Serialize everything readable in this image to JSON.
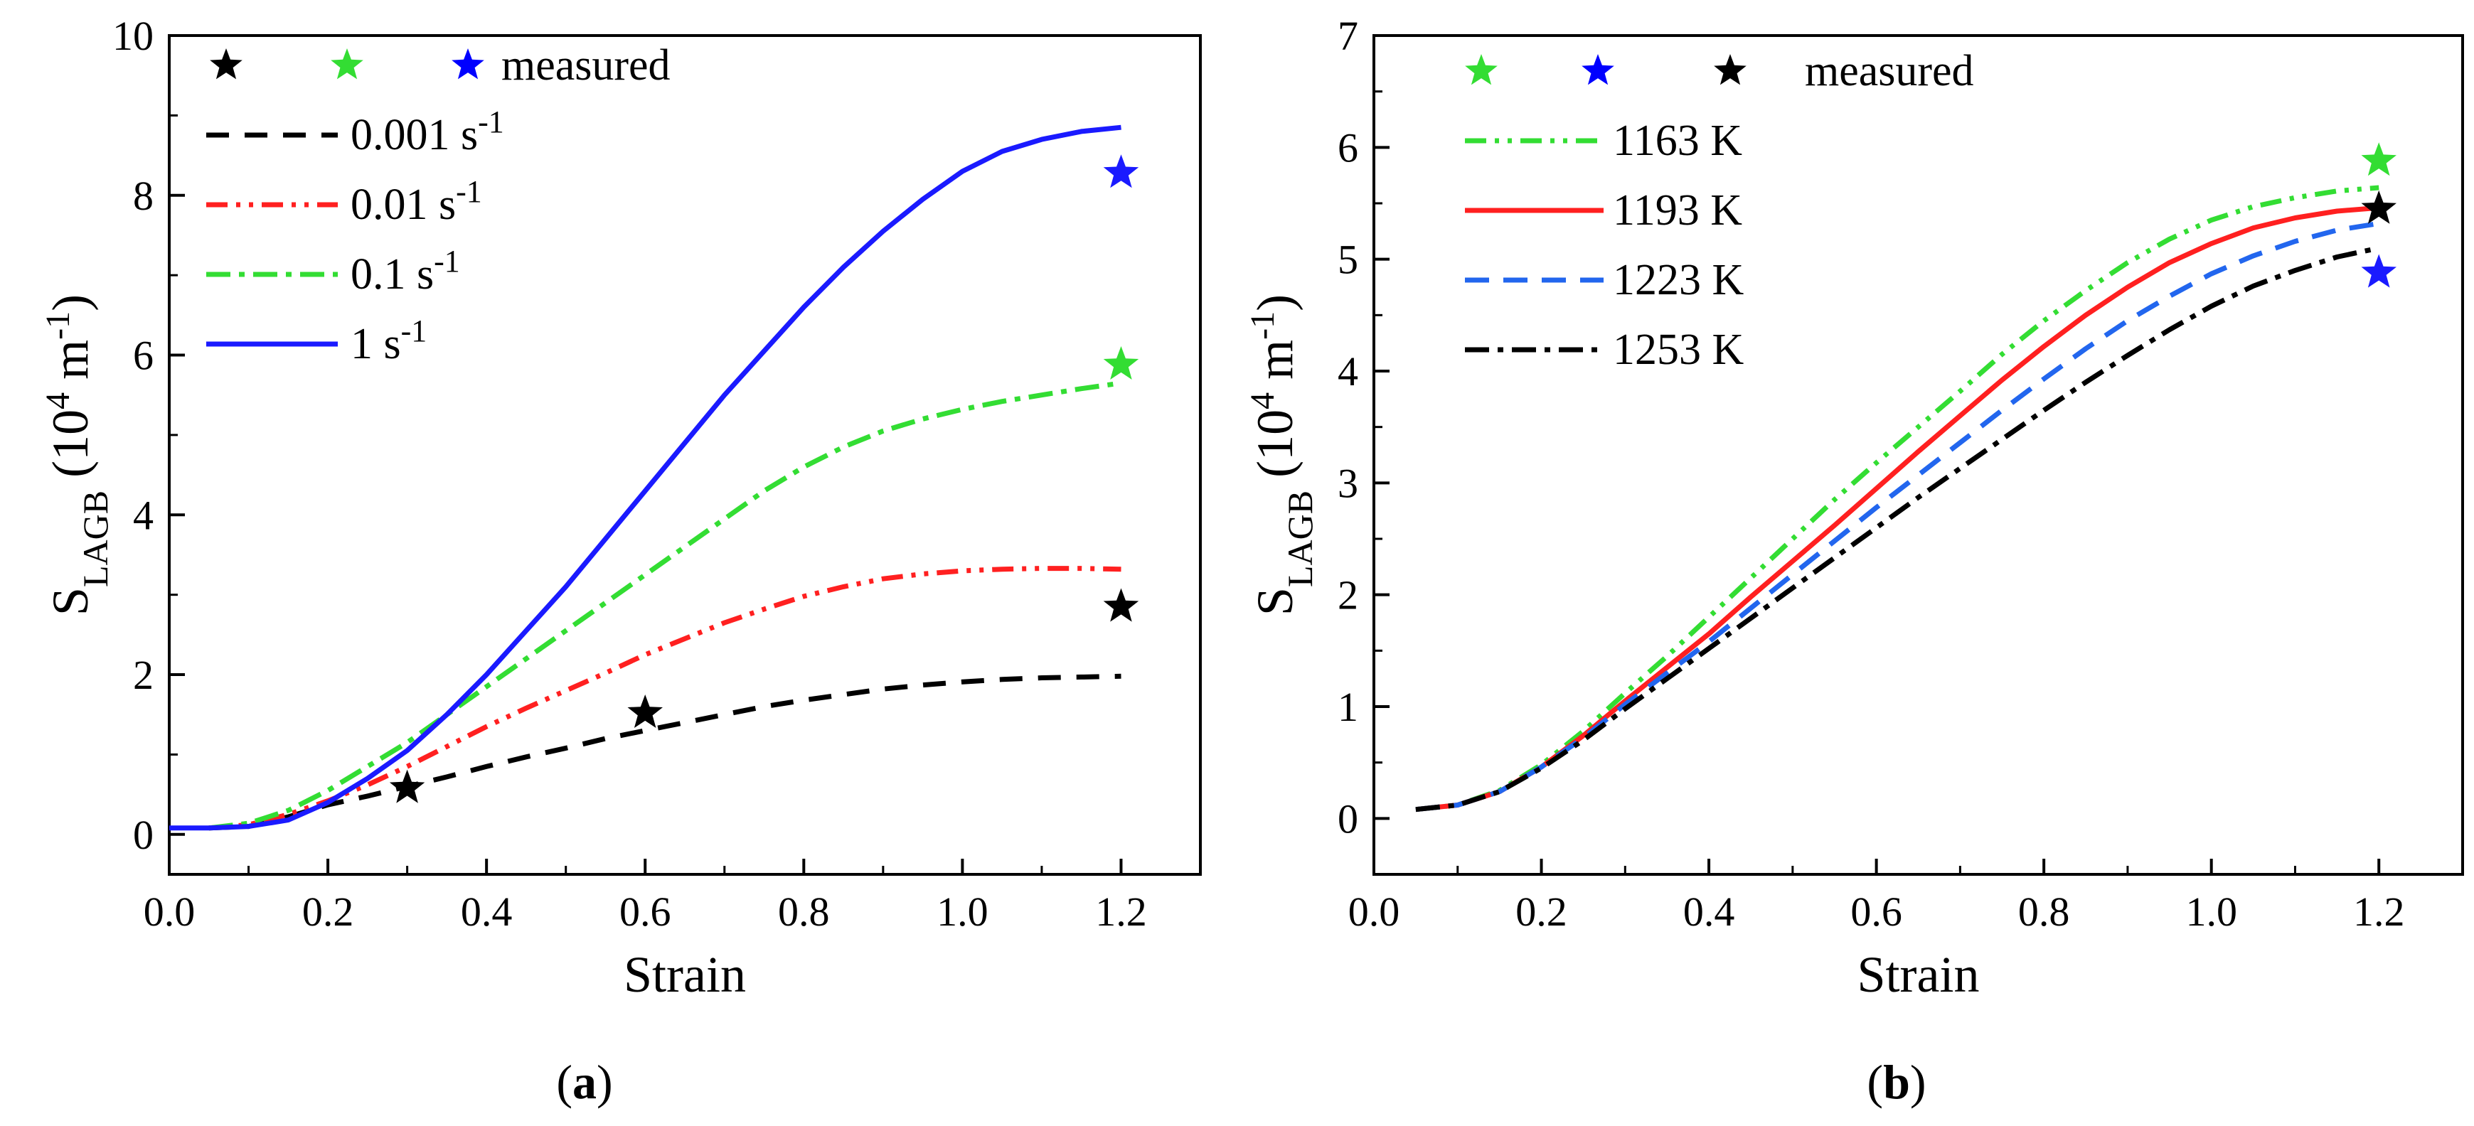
{
  "chart_data": [
    {
      "panel": "a",
      "caption": {
        "open": "(",
        "letter": "a",
        "close": ")"
      },
      "type": "line",
      "xlabel": "Strain",
      "ylabel": {
        "main": "S",
        "sub": "LAGB",
        "unit_open": " (10",
        "unit_sup1": "4",
        "unit_mid": " m",
        "unit_sup2": "-1",
        "unit_close": ")"
      },
      "xlim": [
        0,
        1.3
      ],
      "ylim": [
        -0.5,
        10
      ],
      "xticks": [
        "0.0",
        "0.2",
        "0.4",
        "0.6",
        "0.8",
        "1.0",
        "1.2"
      ],
      "yticks": [
        "0",
        "2",
        "4",
        "6",
        "8",
        "10"
      ],
      "legend_position": "top-left",
      "measured_label": "measured",
      "measured_legend_colors": [
        "#000000",
        "#33dd33",
        "#0000ff"
      ],
      "series": [
        {
          "name": "0.001 s",
          "sup": "-1",
          "color": "#000000",
          "dash": "32,22",
          "x": [
            0.05,
            0.1,
            0.15,
            0.2,
            0.25,
            0.3,
            0.35,
            0.4,
            0.45,
            0.5,
            0.55,
            0.6,
            0.65,
            0.7,
            0.75,
            0.8,
            0.85,
            0.9,
            0.95,
            1.0,
            1.05,
            1.1,
            1.15,
            1.2
          ],
          "y": [
            0.08,
            0.1,
            0.22,
            0.37,
            0.48,
            0.6,
            0.72,
            0.85,
            0.97,
            1.08,
            1.2,
            1.3,
            1.4,
            1.5,
            1.6,
            1.68,
            1.75,
            1.82,
            1.87,
            1.91,
            1.94,
            1.96,
            1.97,
            1.98
          ]
        },
        {
          "name": "0.01 s",
          "sup": "-1",
          "color": "#ff2020",
          "dash": "30,12,6,12,6,12",
          "x": [
            0.05,
            0.1,
            0.15,
            0.2,
            0.25,
            0.3,
            0.35,
            0.4,
            0.45,
            0.5,
            0.55,
            0.6,
            0.65,
            0.7,
            0.75,
            0.8,
            0.85,
            0.9,
            0.95,
            1.0,
            1.05,
            1.1,
            1.15,
            1.2
          ],
          "y": [
            0.08,
            0.12,
            0.25,
            0.42,
            0.62,
            0.85,
            1.1,
            1.35,
            1.58,
            1.8,
            2.02,
            2.25,
            2.45,
            2.65,
            2.82,
            2.98,
            3.1,
            3.2,
            3.26,
            3.3,
            3.32,
            3.33,
            3.33,
            3.32
          ]
        },
        {
          "name": "0.1 s",
          "sup": "-1",
          "color": "#33dd33",
          "dash": "34,12,8,12",
          "x": [
            0.05,
            0.1,
            0.15,
            0.2,
            0.25,
            0.3,
            0.35,
            0.4,
            0.45,
            0.5,
            0.55,
            0.6,
            0.65,
            0.7,
            0.75,
            0.8,
            0.85,
            0.9,
            0.95,
            1.0,
            1.05,
            1.1,
            1.15,
            1.2
          ],
          "y": [
            0.08,
            0.14,
            0.3,
            0.55,
            0.85,
            1.15,
            1.5,
            1.85,
            2.2,
            2.55,
            2.9,
            3.25,
            3.6,
            3.95,
            4.3,
            4.6,
            4.85,
            5.05,
            5.2,
            5.32,
            5.42,
            5.5,
            5.58,
            5.65
          ]
        },
        {
          "name": "1 s",
          "sup": "-1",
          "color": "#1a1aff",
          "dash": "",
          "x": [
            0.0,
            0.05,
            0.1,
            0.15,
            0.2,
            0.25,
            0.3,
            0.35,
            0.4,
            0.45,
            0.5,
            0.55,
            0.6,
            0.65,
            0.7,
            0.75,
            0.8,
            0.85,
            0.9,
            0.95,
            1.0,
            1.05,
            1.1,
            1.15,
            1.2
          ],
          "y": [
            0.08,
            0.08,
            0.1,
            0.18,
            0.4,
            0.7,
            1.05,
            1.5,
            2.0,
            2.55,
            3.1,
            3.7,
            4.3,
            4.9,
            5.5,
            6.05,
            6.6,
            7.1,
            7.55,
            7.95,
            8.3,
            8.55,
            8.7,
            8.8,
            8.85
          ]
        }
      ],
      "measured": [
        {
          "x": 0.3,
          "y": 0.58,
          "color": "#000000"
        },
        {
          "x": 0.6,
          "y": 1.52,
          "color": "#000000"
        },
        {
          "x": 1.2,
          "y": 2.85,
          "color": "#000000"
        },
        {
          "x": 1.2,
          "y": 5.88,
          "color": "#33dd33"
        },
        {
          "x": 1.2,
          "y": 8.28,
          "color": "#1a1aff"
        }
      ]
    },
    {
      "panel": "b",
      "caption": {
        "open": "(",
        "letter": "b",
        "close": ")"
      },
      "type": "line",
      "xlabel": "Strain",
      "ylabel": {
        "main": "S",
        "sub": "LAGB",
        "unit_open": " (10",
        "unit_sup1": "4",
        "unit_mid": " m",
        "unit_sup2": "-1",
        "unit_close": ")"
      },
      "xlim": [
        0,
        1.3
      ],
      "ylim": [
        -0.5,
        7
      ],
      "xticks": [
        "0.0",
        "0.2",
        "0.4",
        "0.6",
        "0.8",
        "1.0",
        "1.2"
      ],
      "yticks": [
        "0",
        "1",
        "2",
        "3",
        "4",
        "5",
        "6",
        "7"
      ],
      "legend_position": "top-left",
      "measured_label": "measured",
      "measured_legend_colors": [
        "#33dd33",
        "#0000ff",
        "#000000"
      ],
      "series": [
        {
          "name": "1163 K",
          "sup": "",
          "color": "#33dd33",
          "dash": "30,12,6,12,6,12",
          "x": [
            0.05,
            0.1,
            0.15,
            0.2,
            0.25,
            0.3,
            0.35,
            0.4,
            0.45,
            0.5,
            0.55,
            0.6,
            0.65,
            0.7,
            0.75,
            0.8,
            0.85,
            0.9,
            0.95,
            1.0,
            1.05,
            1.1,
            1.15,
            1.2
          ],
          "y": [
            0.08,
            0.12,
            0.25,
            0.48,
            0.78,
            1.12,
            1.45,
            1.8,
            2.15,
            2.5,
            2.85,
            3.18,
            3.5,
            3.82,
            4.15,
            4.45,
            4.72,
            4.97,
            5.18,
            5.35,
            5.47,
            5.55,
            5.61,
            5.64
          ]
        },
        {
          "name": "1193 K",
          "sup": "",
          "color": "#ff2020",
          "dash": "",
          "x": [
            0.05,
            0.1,
            0.15,
            0.2,
            0.25,
            0.3,
            0.35,
            0.4,
            0.45,
            0.5,
            0.55,
            0.6,
            0.65,
            0.7,
            0.75,
            0.8,
            0.85,
            0.9,
            0.95,
            1.0,
            1.05,
            1.1,
            1.15,
            1.2
          ],
          "y": [
            0.08,
            0.12,
            0.24,
            0.46,
            0.74,
            1.05,
            1.35,
            1.65,
            1.98,
            2.3,
            2.62,
            2.95,
            3.28,
            3.6,
            3.92,
            4.22,
            4.5,
            4.75,
            4.97,
            5.14,
            5.28,
            5.37,
            5.43,
            5.46
          ]
        },
        {
          "name": "1223 K",
          "sup": "",
          "color": "#2266ee",
          "dash": "34,20",
          "x": [
            0.05,
            0.1,
            0.15,
            0.2,
            0.25,
            0.3,
            0.35,
            0.4,
            0.45,
            0.5,
            0.55,
            0.6,
            0.65,
            0.7,
            0.75,
            0.8,
            0.85,
            0.9,
            0.95,
            1.0,
            1.05,
            1.1,
            1.15,
            1.2
          ],
          "y": [
            0.08,
            0.12,
            0.24,
            0.46,
            0.72,
            1.02,
            1.3,
            1.58,
            1.88,
            2.18,
            2.48,
            2.78,
            3.07,
            3.36,
            3.65,
            3.93,
            4.2,
            4.45,
            4.67,
            4.87,
            5.03,
            5.16,
            5.26,
            5.32
          ]
        },
        {
          "name": "1253 K",
          "sup": "",
          "color": "#000000",
          "dash": "34,12,8,12",
          "x": [
            0.05,
            0.1,
            0.15,
            0.2,
            0.25,
            0.3,
            0.35,
            0.4,
            0.45,
            0.5,
            0.55,
            0.6,
            0.65,
            0.7,
            0.75,
            0.8,
            0.85,
            0.9,
            0.95,
            1.0,
            1.05,
            1.1,
            1.15,
            1.2
          ],
          "y": [
            0.08,
            0.12,
            0.24,
            0.45,
            0.7,
            0.98,
            1.25,
            1.52,
            1.79,
            2.06,
            2.33,
            2.6,
            2.87,
            3.13,
            3.39,
            3.65,
            3.9,
            4.14,
            4.37,
            4.58,
            4.76,
            4.9,
            5.02,
            5.1
          ]
        }
      ],
      "measured": [
        {
          "x": 1.2,
          "y": 5.88,
          "color": "#33dd33"
        },
        {
          "x": 1.2,
          "y": 5.45,
          "color": "#000000"
        },
        {
          "x": 1.2,
          "y": 4.88,
          "color": "#1a1aff"
        }
      ]
    }
  ]
}
